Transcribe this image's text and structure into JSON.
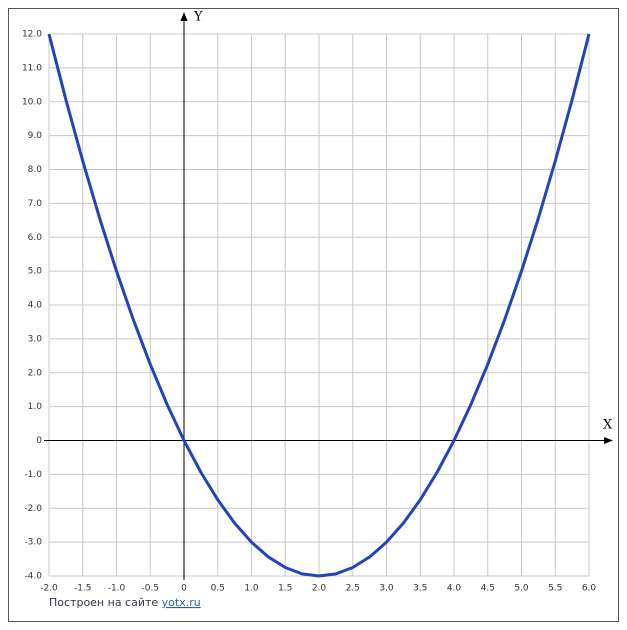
{
  "chart_data": {
    "type": "line",
    "x_label": "X",
    "y_label": "Y",
    "x": [
      -2,
      -1.75,
      -1.5,
      -1.25,
      -1,
      -0.75,
      -0.5,
      -0.25,
      0,
      0.25,
      0.5,
      0.75,
      1,
      1.25,
      1.5,
      1.75,
      2,
      2.25,
      2.5,
      2.75,
      3,
      3.25,
      3.5,
      3.75,
      4,
      4.25,
      4.5,
      4.75,
      5,
      5.25,
      5.5,
      5.75,
      6
    ],
    "values": [
      12,
      10.0625,
      8.25,
      6.5625,
      5,
      3.5625,
      2.25,
      1.0625,
      0,
      -0.9375,
      -1.75,
      -2.4375,
      -3,
      -3.4375,
      -3.75,
      -3.9375,
      -4,
      -3.9375,
      -3.75,
      -3.4375,
      -3,
      -2.4375,
      -1.75,
      -0.9375,
      0,
      1.0625,
      2.25,
      3.5625,
      5,
      6.5625,
      8.25,
      10.0625,
      12
    ],
    "color": "#2443b8",
    "xlim": [
      -2,
      6
    ],
    "ylim": [
      -4,
      12
    ],
    "xticks": [
      {
        "value": -2,
        "label": "-2.0"
      },
      -1.5,
      {
        "value": -1,
        "label": "-1.0"
      },
      -0.5,
      0,
      0.5,
      {
        "value": 1,
        "label": "1.0"
      },
      1.5,
      {
        "value": 2,
        "label": "2.0"
      },
      2.5,
      {
        "value": 3,
        "label": "3.0"
      },
      3.5,
      {
        "value": 4,
        "label": "4.0"
      },
      4.5,
      {
        "value": 5,
        "label": "5.0"
      },
      5.5,
      {
        "value": 6,
        "label": "6.0"
      }
    ],
    "yticks": [
      {
        "value": -4,
        "label": "-4.0"
      },
      {
        "value": -3,
        "label": "-3.0"
      },
      {
        "value": -2,
        "label": "-2.0"
      },
      {
        "value": -1,
        "label": "-1.0"
      },
      0,
      {
        "value": 1,
        "label": "1.0"
      },
      {
        "value": 2,
        "label": "2.0"
      },
      {
        "value": 3,
        "label": "3.0"
      },
      {
        "value": 4,
        "label": "4.0"
      },
      {
        "value": 5,
        "label": "5.0"
      },
      {
        "value": 6,
        "label": "6.0"
      },
      {
        "value": 7,
        "label": "7.0"
      },
      {
        "value": 8,
        "label": "8.0"
      },
      {
        "value": 9,
        "label": "9.0"
      },
      {
        "value": 10,
        "label": "10.0"
      },
      {
        "value": 11,
        "label": "11.0"
      },
      {
        "value": 12,
        "label": "12.0"
      }
    ],
    "grid": true
  },
  "footer": {
    "text": "Построен на сайте",
    "link": "yotx.ru"
  }
}
